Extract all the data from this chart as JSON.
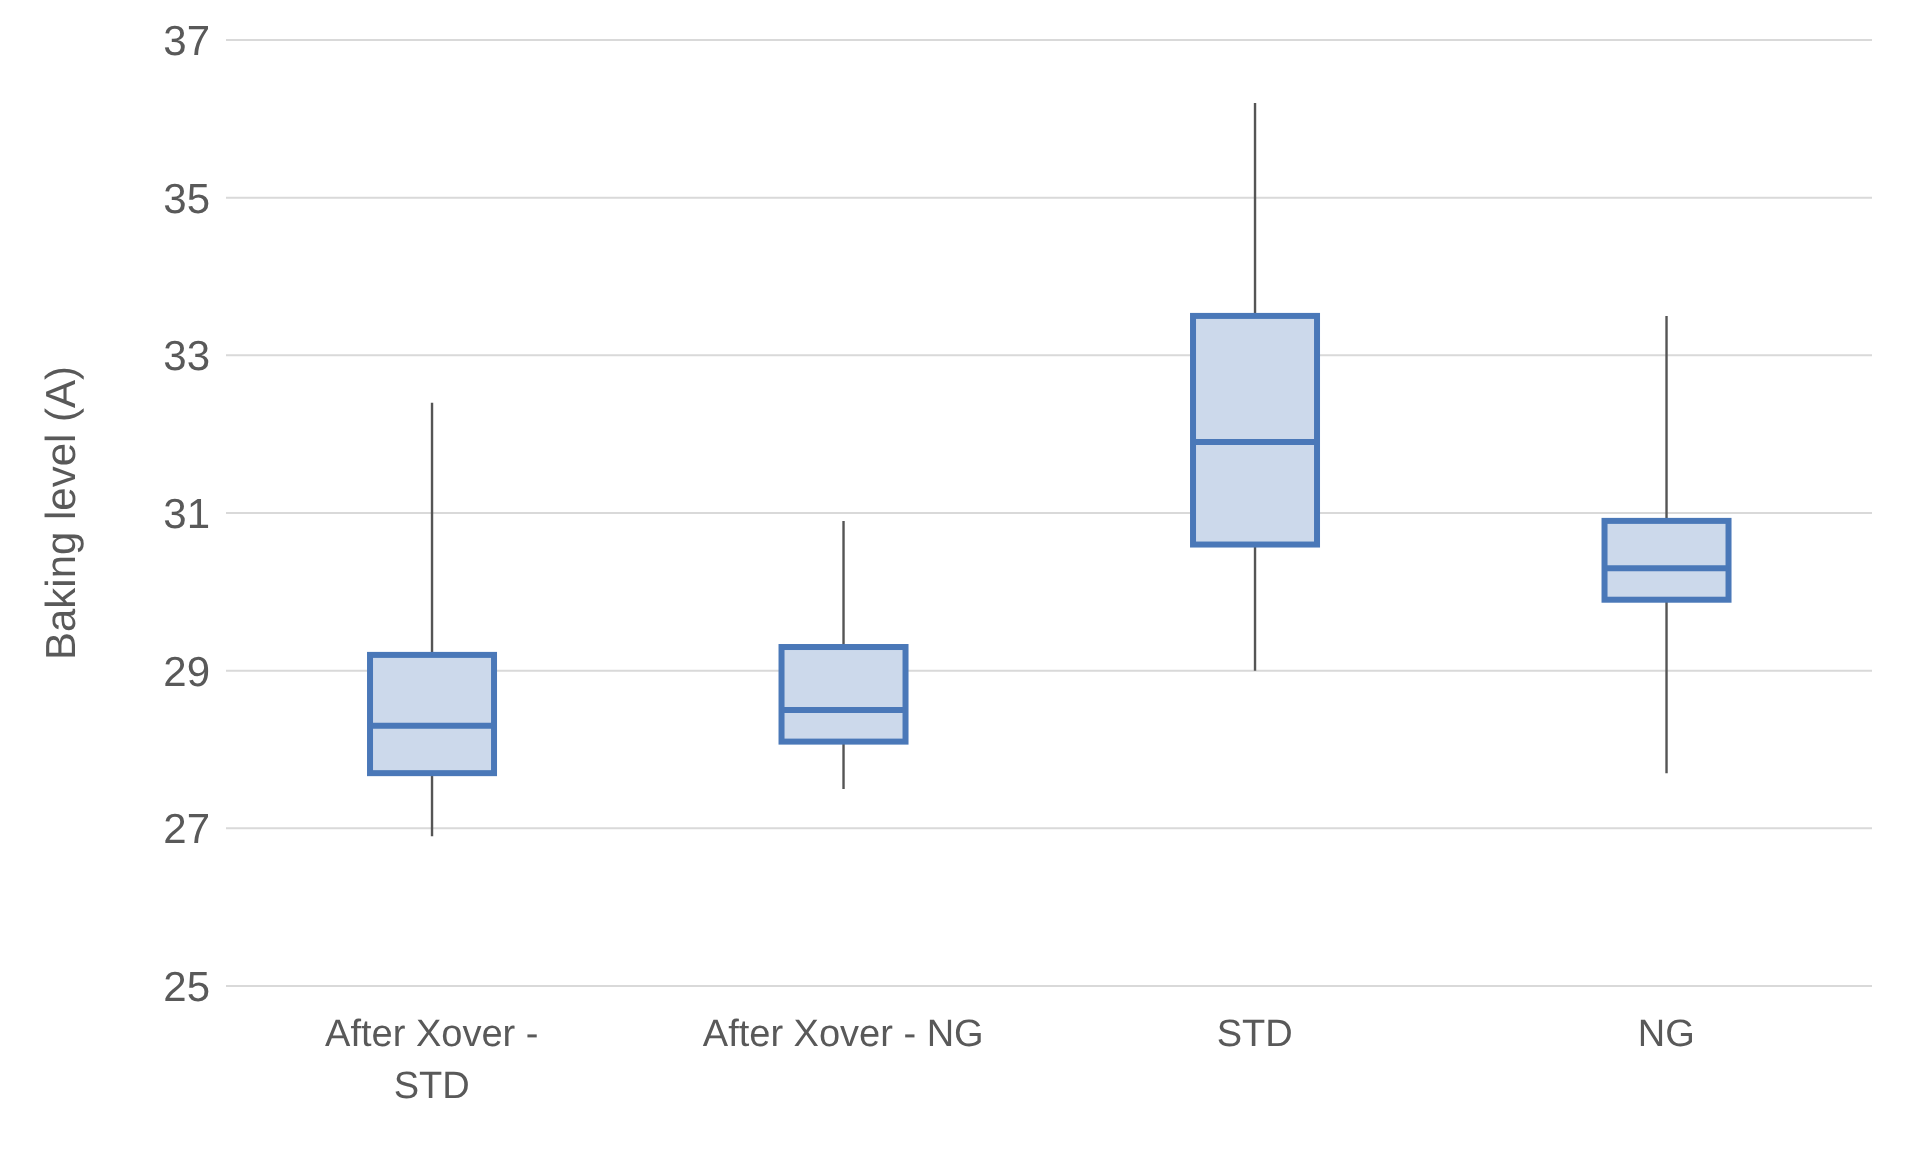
{
  "chart_data": {
    "type": "box",
    "ylabel": "Baking level (A)",
    "categories": [
      "After Xover - STD",
      "After Xover - NG",
      "STD",
      "NG"
    ],
    "boxes": [
      {
        "low": 26.9,
        "q1": 27.7,
        "median": 28.3,
        "q3": 29.2,
        "high": 32.4
      },
      {
        "low": 27.5,
        "q1": 28.1,
        "median": 28.5,
        "q3": 29.3,
        "high": 30.9
      },
      {
        "low": 29.0,
        "q1": 30.6,
        "median": 31.9,
        "q3": 33.5,
        "high": 36.2
      },
      {
        "low": 27.7,
        "q1": 29.9,
        "median": 30.3,
        "q3": 30.9,
        "high": 33.5
      }
    ],
    "color": "#4a78b8",
    "ylim": [
      25,
      37
    ],
    "yticks": [
      25,
      27,
      29,
      31,
      33,
      35,
      37
    ],
    "grid": "y"
  }
}
